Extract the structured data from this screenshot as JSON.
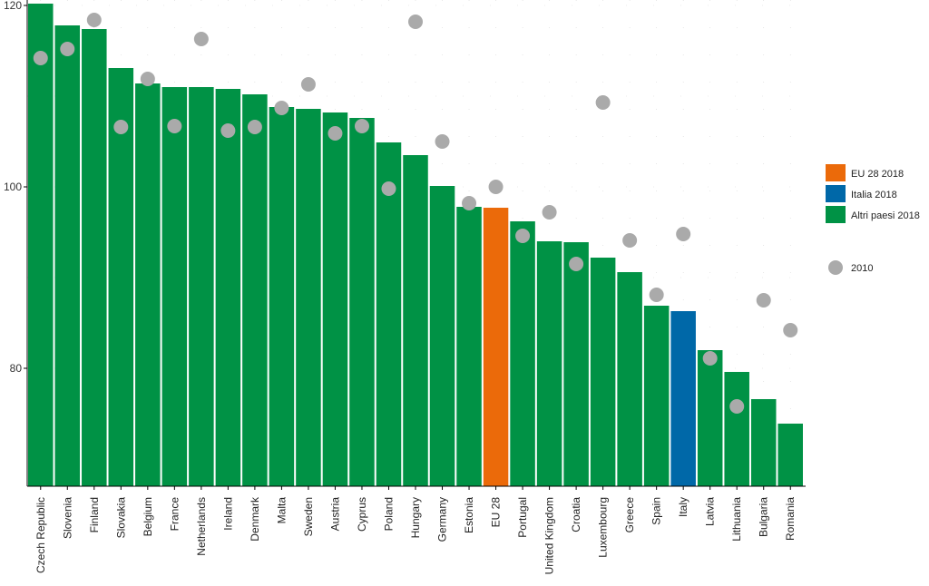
{
  "chart_data": {
    "type": "bar",
    "categories": [
      "Czech Republic",
      "Slovenia",
      "Finland",
      "Slovakia",
      "Belgium",
      "France",
      "Netherlands",
      "Ireland",
      "Denmark",
      "Malta",
      "Sweden",
      "Austria",
      "Cyprus",
      "Poland",
      "Hungary",
      "Germany",
      "Estonia",
      "EU 28",
      "Portugal",
      "United Kingdom",
      "Croatia",
      "Luxembourg",
      "Greece",
      "Spain",
      "Italy",
      "Latvia",
      "Lithuania",
      "Bulgaria",
      "Romania"
    ],
    "series": [
      {
        "name": "EU 28 2018 / Italia 2018 / Altri paesi 2018",
        "values": [
          120.2,
          117.8,
          117.4,
          113.1,
          111.4,
          111.0,
          111.0,
          110.8,
          110.2,
          108.8,
          108.6,
          108.2,
          107.6,
          104.9,
          103.5,
          100.1,
          97.8,
          97.7,
          96.2,
          94.0,
          93.9,
          92.2,
          90.6,
          86.9,
          86.3,
          82.0,
          79.6,
          76.6,
          73.9
        ]
      },
      {
        "name": "2010",
        "values": [
          114.2,
          115.2,
          118.4,
          106.6,
          111.9,
          106.7,
          116.3,
          106.2,
          106.6,
          108.7,
          111.3,
          105.9,
          106.7,
          99.8,
          118.2,
          105.0,
          98.2,
          100.0,
          94.6,
          97.2,
          91.5,
          109.3,
          94.1,
          88.1,
          94.8,
          81.1,
          75.8,
          87.5,
          84.2
        ]
      }
    ],
    "bar_colors": [
      "#009245",
      "#009245",
      "#009245",
      "#009245",
      "#009245",
      "#009245",
      "#009245",
      "#009245",
      "#009245",
      "#009245",
      "#009245",
      "#009245",
      "#009245",
      "#009245",
      "#009245",
      "#009245",
      "#009245",
      "#EB6A0A",
      "#009245",
      "#009245",
      "#009245",
      "#009245",
      "#009245",
      "#009245",
      "#0068A8",
      "#009245",
      "#009245",
      "#009245",
      "#009245"
    ],
    "ylim": [
      67,
      120.6
    ],
    "yticks": [
      80,
      100,
      120
    ],
    "legend": {
      "position": "right",
      "items": [
        {
          "label": "EU 28 2018",
          "color": "#EB6A0A",
          "shape": "square"
        },
        {
          "label": "Italia 2018",
          "color": "#0068A8",
          "shape": "square"
        },
        {
          "label": "Altri paesi 2018",
          "color": "#009245",
          "shape": "square"
        },
        {
          "label": "2010",
          "color": "#AAAAAA",
          "shape": "circle"
        }
      ]
    },
    "grid": true
  }
}
